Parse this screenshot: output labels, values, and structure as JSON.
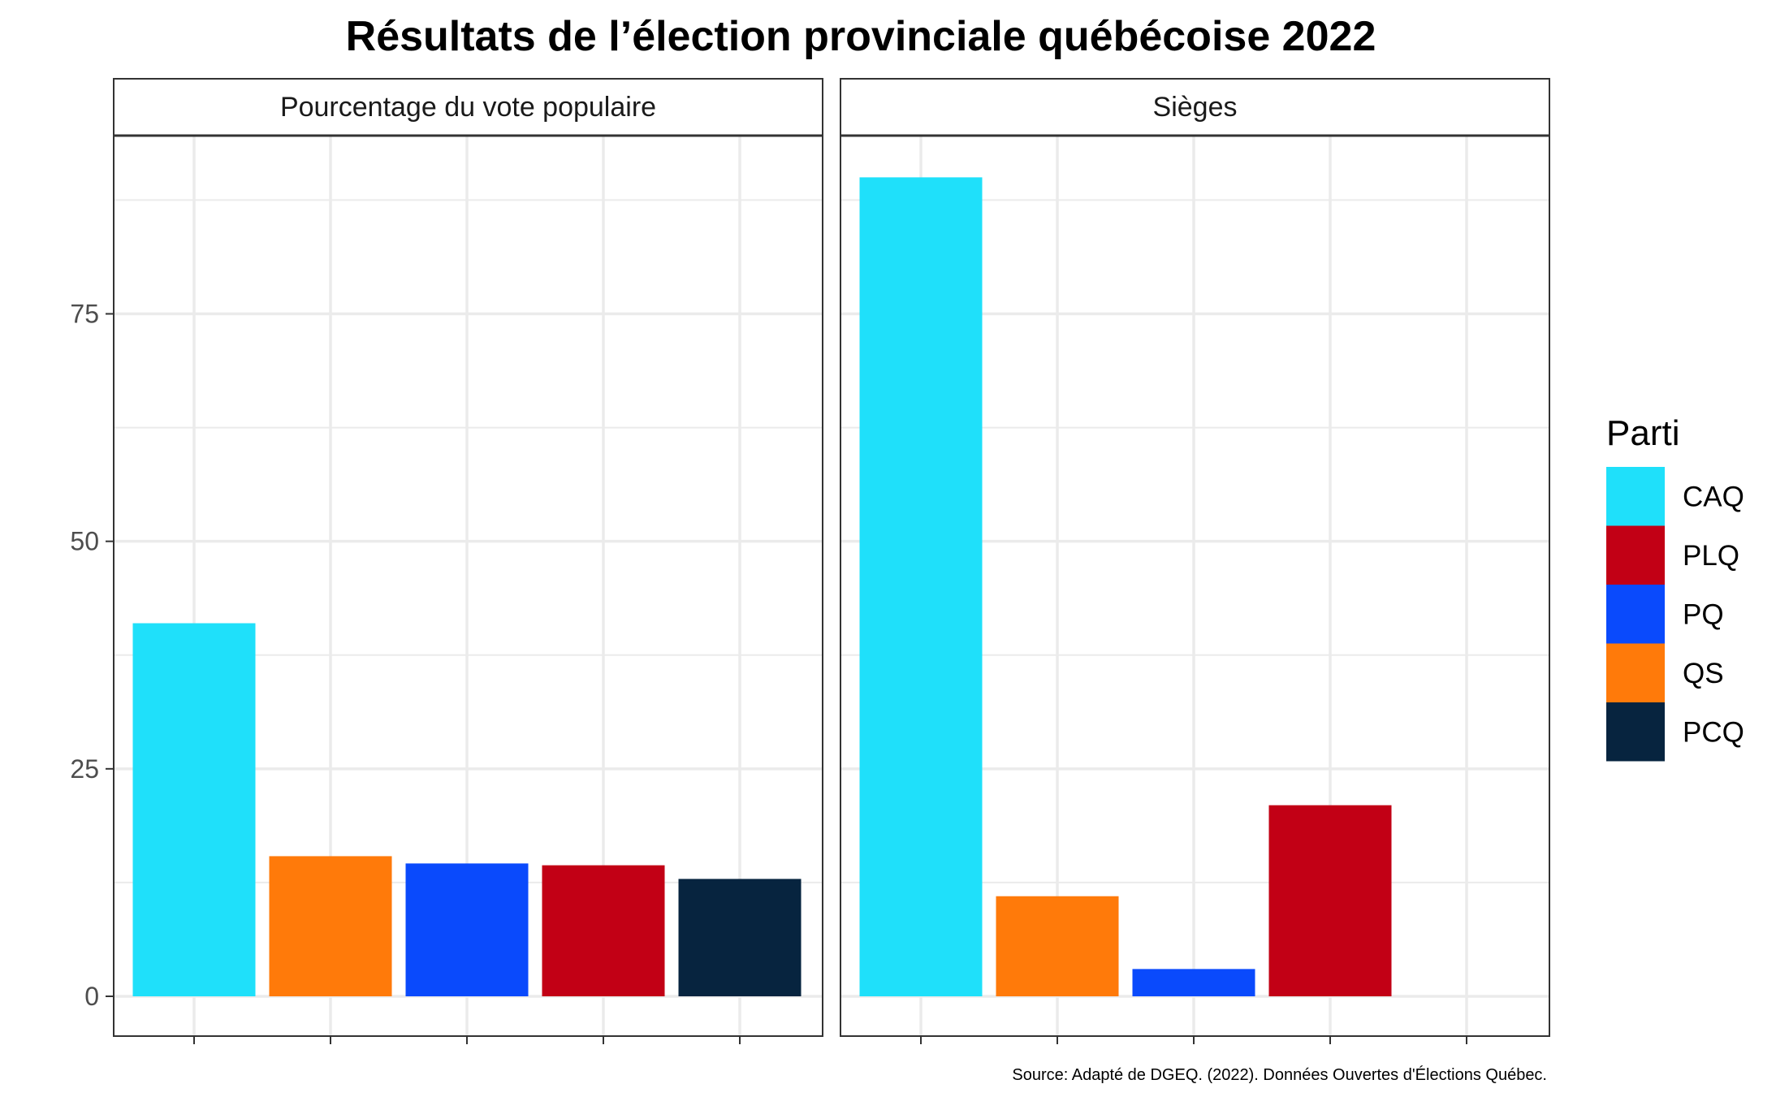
{
  "chart_data": {
    "type": "bar",
    "title": "Résultats de l’élection provinciale québécoise 2022",
    "caption": "Source: Adapté de DGEQ. (2022). Données Ouvertes d'Élections Québec.",
    "ylim": [
      0,
      95
    ],
    "y_ticks": [
      0,
      25,
      50,
      75
    ],
    "grid": true,
    "legend": {
      "title": "Parti",
      "position": "right",
      "entries": [
        {
          "label": "CAQ",
          "color": "#1FE0FA"
        },
        {
          "label": "PLQ",
          "color": "#C20015"
        },
        {
          "label": "PQ",
          "color": "#0A4AFC"
        },
        {
          "label": "QS",
          "color": "#FF7A0A"
        },
        {
          "label": "PCQ",
          "color": "#07243F"
        }
      ]
    },
    "panels": [
      {
        "name": "Pourcentage du vote populaire",
        "bars": [
          {
            "party": "CAQ",
            "value": 41.0
          },
          {
            "party": "QS",
            "value": 15.4
          },
          {
            "party": "PQ",
            "value": 14.6
          },
          {
            "party": "PLQ",
            "value": 14.4
          },
          {
            "party": "PCQ",
            "value": 12.9
          }
        ]
      },
      {
        "name": "Sièges",
        "bars": [
          {
            "party": "CAQ",
            "value": 90
          },
          {
            "party": "QS",
            "value": 11
          },
          {
            "party": "PQ",
            "value": 3
          },
          {
            "party": "PLQ",
            "value": 21
          },
          {
            "party": "PCQ",
            "value": 0
          }
        ]
      }
    ]
  }
}
